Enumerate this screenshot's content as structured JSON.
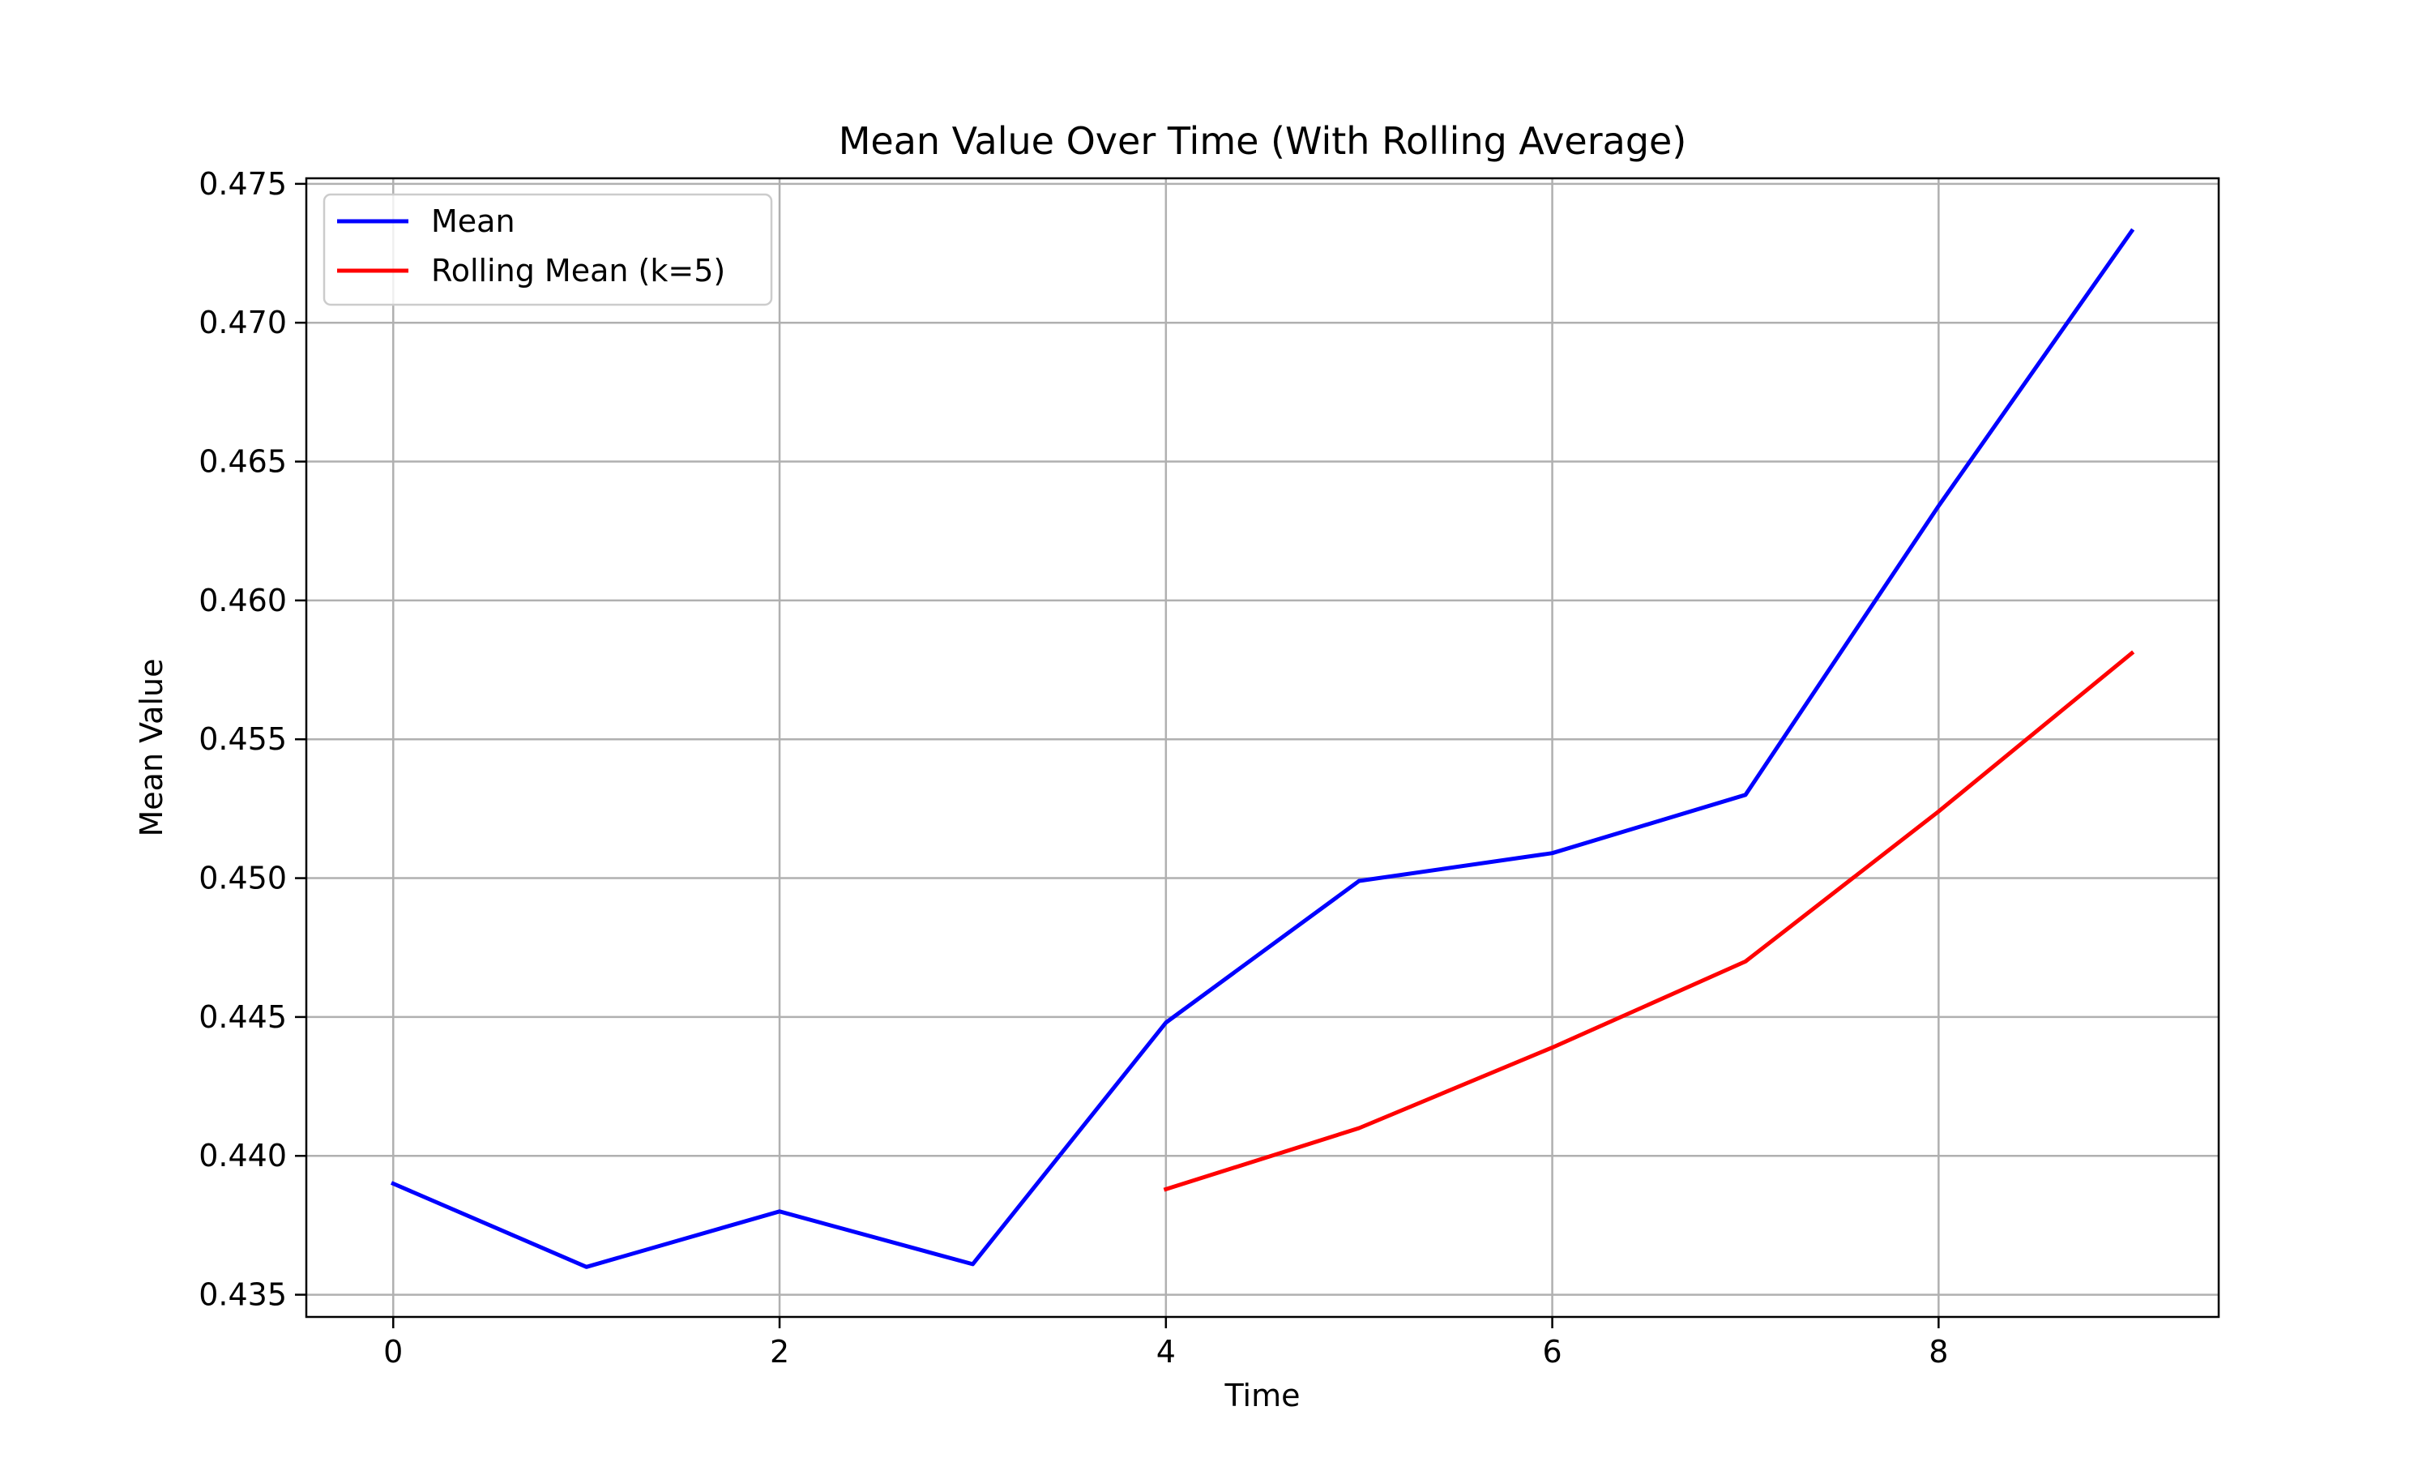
{
  "chart_data": {
    "type": "line",
    "title": "Mean Value Over Time (With Rolling Average)",
    "xlabel": "Time",
    "ylabel": "Mean Value",
    "xlim": [
      -0.45,
      9.45
    ],
    "ylim": [
      0.4342,
      0.4752
    ],
    "xticks": [
      0,
      2,
      4,
      6,
      8
    ],
    "xtick_labels": [
      "0",
      "2",
      "4",
      "6",
      "8"
    ],
    "yticks": [
      0.435,
      0.44,
      0.445,
      0.45,
      0.455,
      0.46,
      0.465,
      0.47,
      0.475
    ],
    "ytick_labels": [
      "0.435",
      "0.440",
      "0.445",
      "0.450",
      "0.455",
      "0.460",
      "0.465",
      "0.470",
      "0.475"
    ],
    "grid": true,
    "legend_position": "top-left",
    "series": [
      {
        "name": "Mean",
        "color": "#0000ff",
        "x": [
          0,
          1,
          2,
          3,
          4,
          5,
          6,
          7,
          8,
          9
        ],
        "y": [
          0.439,
          0.436,
          0.438,
          0.4361,
          0.4448,
          0.4499,
          0.4509,
          0.453,
          0.4634,
          0.4733
        ]
      },
      {
        "name": "Rolling Mean (k=5)",
        "color": "#ff0000",
        "x": [
          4,
          5,
          6,
          7,
          8,
          9
        ],
        "y": [
          0.4388,
          0.441,
          0.4439,
          0.447,
          0.4524,
          0.4581
        ]
      }
    ]
  }
}
